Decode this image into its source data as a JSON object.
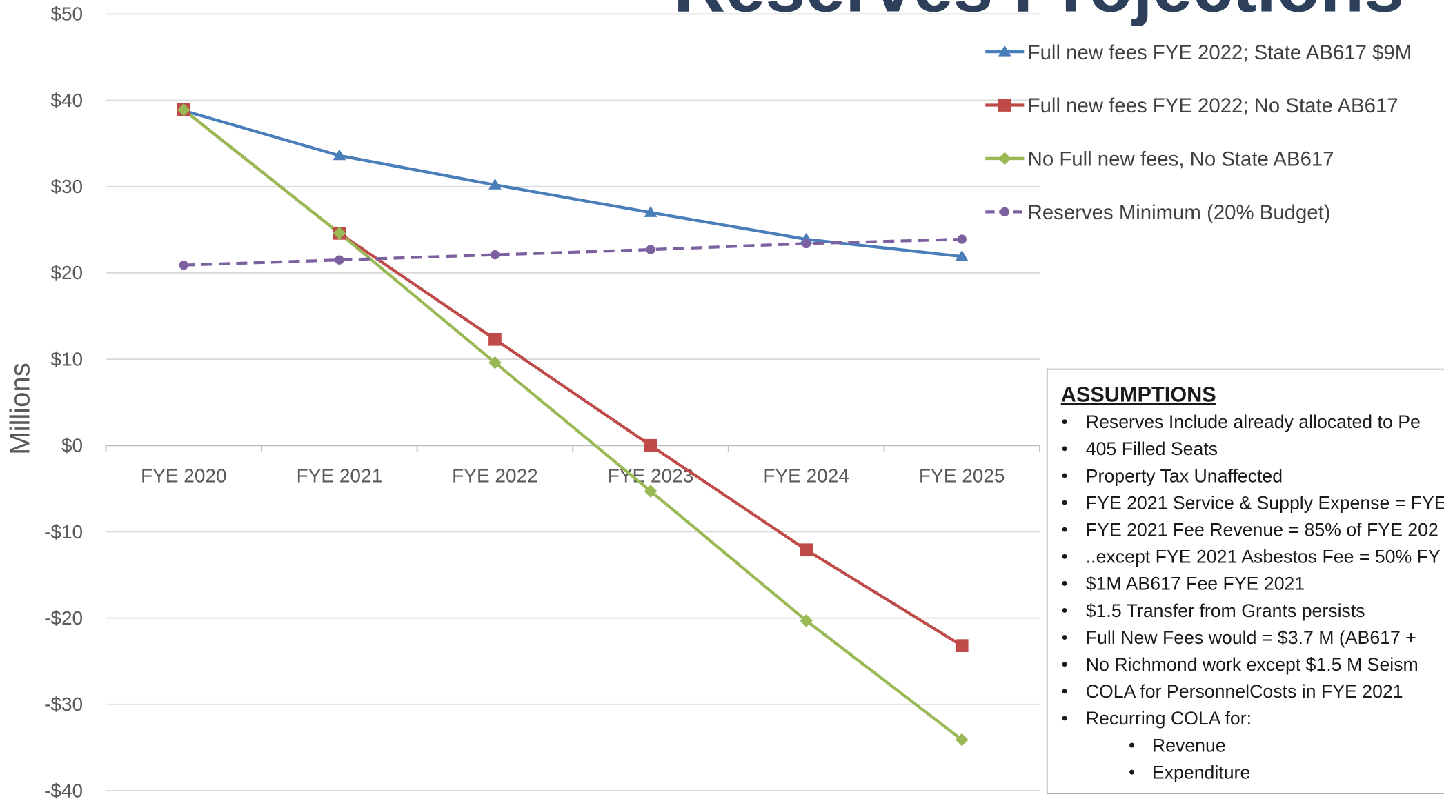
{
  "chart_data": {
    "type": "line",
    "title": "Reserves Projections",
    "y_label": "Millions",
    "categories": [
      "FYE 2020",
      "FYE 2021",
      "FYE 2022",
      "FYE 2023",
      "FYE 2024",
      "FYE 2025"
    ],
    "series": [
      {
        "name": "Full new fees FYE 2022; State AB617 $9M",
        "color": "#4a7ebb",
        "marker": "triangle",
        "dashed": false,
        "values": [
          38.8,
          33.6,
          30.2,
          27.0,
          23.9,
          21.9
        ]
      },
      {
        "name": "Full new fees FYE 2022; No State AB617",
        "color": "#be4b48",
        "marker": "square",
        "dashed": false,
        "values": [
          38.9,
          24.6,
          12.3,
          0.0,
          -12.1,
          -23.2
        ]
      },
      {
        "name": "No Full new fees, No State AB617",
        "color": "#98b954",
        "marker": "diamond",
        "dashed": false,
        "values": [
          38.9,
          24.6,
          9.6,
          -5.3,
          -20.3,
          -34.1
        ]
      },
      {
        "name": "Reserves Minimum (20% Budget)",
        "color": "#7d60a0",
        "marker": "circle",
        "dashed": true,
        "values": [
          20.9,
          21.5,
          22.1,
          22.7,
          23.4,
          23.9
        ]
      }
    ],
    "ylim": [
      -40,
      50
    ],
    "yticks": [
      {
        "value": -40,
        "label": "-$40"
      },
      {
        "value": -30,
        "label": "-$30"
      },
      {
        "value": -20,
        "label": "-$20"
      },
      {
        "value": -10,
        "label": "-$10"
      },
      {
        "value": 0,
        "label": "$0"
      },
      {
        "value": 10,
        "label": "$10"
      },
      {
        "value": 20,
        "label": "$20"
      },
      {
        "value": 30,
        "label": "$30"
      },
      {
        "value": 40,
        "label": "$40"
      },
      {
        "value": 50,
        "label": "$50"
      }
    ],
    "grid": true,
    "legend": "upper right",
    "assumptions": {
      "title": "ASSUMPTIONS",
      "items": [
        "Reserves Include already allocated to Pe",
        "405 Filled Seats",
        "Property Tax Unaffected",
        "FYE 2021 Service & Supply Expense = FYE",
        "FYE 2021 Fee Revenue = 85% of FYE 202",
        "..except FYE 2021 Asbestos Fee = 50% FY",
        "$1M AB617 Fee FYE 2021",
        "$1.5 Transfer from Grants persists",
        "Full New Fees would = $3.7 M (AB617 +",
        "No Richmond work except $1.5 M Seism",
        "COLA for PersonnelCosts in FYE 2021",
        "Recurring COLA for:"
      ],
      "subitems": [
        "Revenue",
        "Expenditure"
      ]
    }
  }
}
